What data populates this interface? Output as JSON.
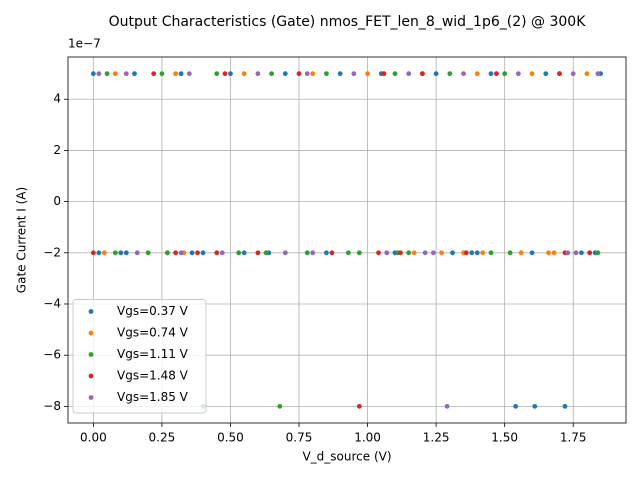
{
  "chart_data": {
    "type": "scatter",
    "title": "Output Characteristics (Gate) nmos_FET_len_8_wid_1p6_(2) @ 300K",
    "x_label": "V_d_source (V)",
    "y_label": "Gate Current I (A)",
    "y_offset_label": "1e−7",
    "xlim": [
      -0.0925,
      1.9425
    ],
    "ylim": [
      -8.65e-07,
      5.65e-07
    ],
    "xticks": [
      {
        "value": 0,
        "label": "0.00"
      },
      {
        "value": 0.25,
        "label": "0.25"
      },
      {
        "value": 0.5,
        "label": "0.50"
      },
      {
        "value": 0.75,
        "label": "0.75"
      },
      {
        "value": 1,
        "label": "1.00"
      },
      {
        "value": 1.25,
        "label": "1.25"
      },
      {
        "value": 1.5,
        "label": "1.50"
      },
      {
        "value": 1.75,
        "label": "1.75"
      }
    ],
    "yticks": [
      {
        "value": -8e-07,
        "label": "−8"
      },
      {
        "value": -6e-07,
        "label": "−6"
      },
      {
        "value": -4e-07,
        "label": "−4"
      },
      {
        "value": -2e-07,
        "label": "−2"
      },
      {
        "value": 0,
        "label": "0"
      },
      {
        "value": 2e-07,
        "label": "2"
      },
      {
        "value": 4e-07,
        "label": "4"
      }
    ],
    "grid": true,
    "legend": "lower left",
    "series": [
      {
        "name": "Vgs=0.37 V",
        "color": "#1f77b4",
        "x": [
          0.0,
          0.15,
          0.32,
          0.5,
          0.7,
          0.9,
          1.05,
          1.25,
          1.45,
          1.65,
          1.85,
          0.02,
          0.1,
          0.12,
          0.36,
          0.4,
          0.55,
          0.64,
          0.85,
          1.1,
          1.31,
          1.38,
          1.4,
          1.6,
          1.78,
          1.83,
          0.4,
          1.54,
          1.61,
          1.72
        ],
        "values": [
          5e-07,
          5e-07,
          5e-07,
          5e-07,
          5e-07,
          5e-07,
          5e-07,
          5e-07,
          5e-07,
          5e-07,
          5e-07,
          -2e-07,
          -2e-07,
          -2e-07,
          -2e-07,
          -2e-07,
          -2e-07,
          -2e-07,
          -2e-07,
          -2e-07,
          -2e-07,
          -2e-07,
          -2e-07,
          -2e-07,
          -2e-07,
          -2e-07,
          -8e-07,
          -8e-07,
          -8e-07,
          -8e-07
        ]
      },
      {
        "name": "Vgs=0.74 V",
        "color": "#ff7f0e",
        "x": [
          0.08,
          0.3,
          0.55,
          0.8,
          1.0,
          1.2,
          1.4,
          1.6,
          1.8,
          0.04,
          0.27,
          0.33,
          1.17,
          1.27,
          1.35,
          1.42,
          1.56,
          1.66,
          1.68
        ],
        "values": [
          5e-07,
          5e-07,
          5e-07,
          5e-07,
          5e-07,
          5e-07,
          5e-07,
          5e-07,
          5e-07,
          -2e-07,
          -2e-07,
          -2e-07,
          -2e-07,
          -2e-07,
          -2e-07,
          -2e-07,
          -2e-07,
          -2e-07,
          -2e-07
        ]
      },
      {
        "name": "Vgs=1.11 V",
        "color": "#2ca02c",
        "x": [
          0.05,
          0.25,
          0.45,
          0.65,
          0.85,
          1.1,
          1.3,
          1.5,
          1.7,
          0.08,
          0.2,
          0.27,
          0.53,
          0.63,
          0.78,
          0.93,
          0.97,
          1.11,
          1.15,
          1.45,
          1.52,
          1.84,
          0.68
        ],
        "values": [
          5e-07,
          5e-07,
          5e-07,
          5e-07,
          5e-07,
          5e-07,
          5e-07,
          5e-07,
          5e-07,
          -2e-07,
          -2e-07,
          -2e-07,
          -2e-07,
          -2e-07,
          -2e-07,
          -2e-07,
          -2e-07,
          -2e-07,
          -2e-07,
          -2e-07,
          -2e-07,
          -2e-07,
          -8e-07
        ]
      },
      {
        "name": "Vgs=1.48 V",
        "color": "#d62728",
        "x": [
          0.22,
          0.48,
          0.75,
          1.06,
          1.2,
          1.47,
          1.7,
          0.0,
          0.3,
          0.38,
          0.45,
          0.6,
          0.87,
          1.04,
          1.12,
          1.36,
          1.72,
          1.81,
          0.97
        ],
        "values": [
          5e-07,
          5e-07,
          5e-07,
          5e-07,
          5e-07,
          5e-07,
          5e-07,
          -2e-07,
          -2e-07,
          -2e-07,
          -2e-07,
          -2e-07,
          -2e-07,
          -2e-07,
          -2e-07,
          -2e-07,
          -2e-07,
          -2e-07,
          -8e-07
        ]
      },
      {
        "name": "Vgs=1.85 V",
        "color": "#9467bd",
        "x": [
          0.02,
          0.12,
          0.35,
          0.6,
          0.78,
          0.95,
          1.15,
          1.35,
          1.55,
          1.75,
          1.84,
          0.16,
          0.32,
          0.47,
          0.7,
          0.8,
          1.07,
          1.21,
          1.24,
          1.73,
          1.76,
          1.29
        ],
        "values": [
          5e-07,
          5e-07,
          5e-07,
          5e-07,
          5e-07,
          5e-07,
          5e-07,
          5e-07,
          5e-07,
          5e-07,
          5e-07,
          -2e-07,
          -2e-07,
          -2e-07,
          -2e-07,
          -2e-07,
          -2e-07,
          -2e-07,
          -2e-07,
          -2e-07,
          -2e-07,
          -8e-07
        ]
      }
    ]
  }
}
